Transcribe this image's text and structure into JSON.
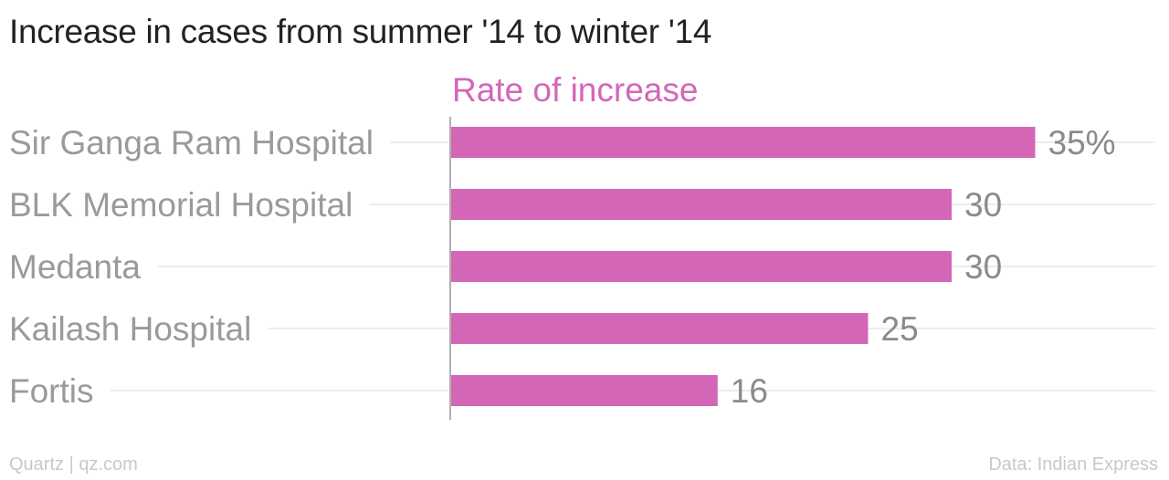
{
  "chart_data": {
    "type": "bar",
    "orientation": "horizontal",
    "title": "Increase in cases from summer '14 to winter '14",
    "series": [
      {
        "name": "Rate of increase",
        "values": [
          35,
          30,
          30,
          25,
          16
        ],
        "labels": [
          "35%",
          "30",
          "30",
          "25",
          "16"
        ]
      }
    ],
    "categories": [
      "Sir Ganga Ram Hospital",
      "BLK Memorial Hospital",
      "Medanta",
      "Kailash Hospital",
      "Fortis"
    ],
    "xlim": [
      0,
      35
    ],
    "grid": true
  },
  "colors": {
    "bar": "#d466b8",
    "series_label": "#d466b8",
    "category_label": "#9a9a9a",
    "value_label": "#8a8a8a",
    "gridline": "#ececec",
    "axis": "#b0b0b0"
  },
  "footer": {
    "source_left": "Quartz | qz.com",
    "source_right": "Data: Indian Express"
  }
}
